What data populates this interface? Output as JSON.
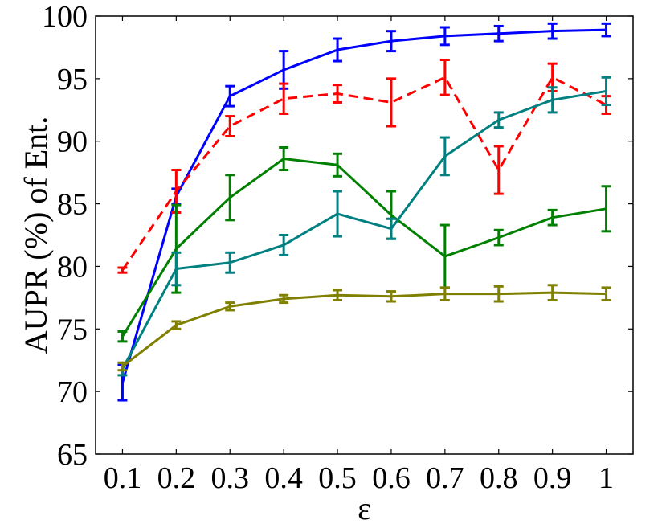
{
  "chart_data": {
    "type": "line",
    "xlabel": "ε",
    "ylabel": "AUPR (%) of Ent.",
    "x": [
      0.1,
      0.2,
      0.3,
      0.4,
      0.5,
      0.6,
      0.7,
      0.8,
      0.9,
      1
    ],
    "x_tick_labels": [
      "0.1",
      "0.2",
      "0.3",
      "0.4",
      "0.5",
      "0.6",
      "0.7",
      "0.8",
      "0.9",
      "1"
    ],
    "y_ticks": [
      65,
      70,
      75,
      80,
      85,
      90,
      95,
      100
    ],
    "xlim": [
      0.05,
      1.05
    ],
    "ylim": [
      65,
      100
    ],
    "grid": false,
    "series": [
      {
        "color": "#0000ff",
        "dash": "solid",
        "values": [
          70.7,
          85.6,
          93.6,
          95.7,
          97.3,
          98.0,
          98.4,
          98.6,
          98.8,
          98.9
        ],
        "errors": [
          1.4,
          0.6,
          0.8,
          1.5,
          0.9,
          0.8,
          0.7,
          0.6,
          0.6,
          0.5
        ]
      },
      {
        "color": "#ff0000",
        "dash": "dashed",
        "values": [
          79.7,
          86.0,
          91.2,
          93.4,
          93.8,
          93.1,
          95.1,
          87.7,
          95.1,
          92.9
        ],
        "errors": [
          0.2,
          1.7,
          0.8,
          1.2,
          0.7,
          1.9,
          1.4,
          1.9,
          1.1,
          0.7
        ]
      },
      {
        "color": "#008000",
        "dash": "solid",
        "values": [
          74.4,
          81.4,
          85.5,
          88.6,
          88.1,
          84.1,
          80.8,
          82.3,
          83.9,
          84.6
        ],
        "errors": [
          0.4,
          3.5,
          1.8,
          0.9,
          0.9,
          1.9,
          2.5,
          0.6,
          0.6,
          1.8
        ]
      },
      {
        "color": "#008080",
        "dash": "solid",
        "values": [
          71.8,
          79.8,
          80.3,
          81.7,
          84.2,
          83.0,
          88.8,
          91.7,
          93.3,
          94.0
        ],
        "errors": [
          0.5,
          1.3,
          0.8,
          0.8,
          1.8,
          0.8,
          1.5,
          0.6,
          1.0,
          1.1
        ]
      },
      {
        "color": "#808000",
        "dash": "solid",
        "values": [
          72.0,
          75.3,
          76.8,
          77.4,
          77.7,
          77.6,
          77.8,
          77.8,
          77.9,
          77.8
        ],
        "errors": [
          0.3,
          0.3,
          0.3,
          0.3,
          0.4,
          0.4,
          0.5,
          0.6,
          0.6,
          0.5
        ]
      }
    ]
  }
}
